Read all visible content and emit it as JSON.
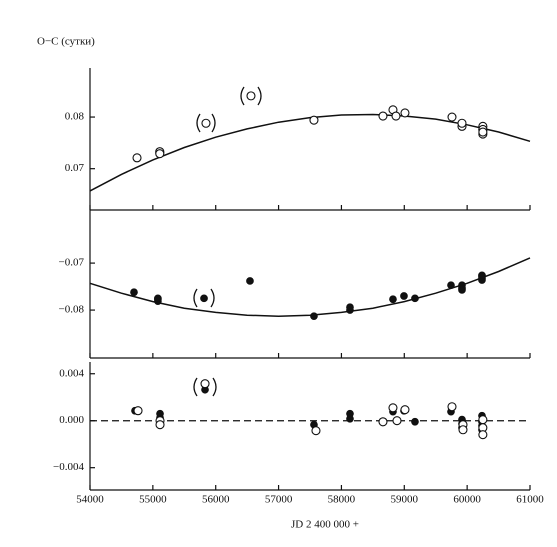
{
  "chart_data": [
    {
      "type": "scatter",
      "ylabel": "O−C (сутки)",
      "xlim": [
        54000,
        61000
      ],
      "xticks": [
        54000,
        55000,
        56000,
        57000,
        58000,
        59000,
        60000,
        61000
      ],
      "ylim": [
        0.062,
        0.0895
      ],
      "yticks": [
        0.07,
        0.08
      ],
      "series": [
        {
          "marker": "line",
          "color": "#111111",
          "x": [
            54000,
            54500,
            55000,
            55500,
            56000,
            56500,
            57000,
            57500,
            58000,
            58500,
            59000,
            59500,
            60000,
            60500,
            61000
          ],
          "values": [
            0.0657,
            0.0689,
            0.0717,
            0.0741,
            0.0761,
            0.0777,
            0.079,
            0.0799,
            0.0804,
            0.0805,
            0.0802,
            0.0796,
            0.0785,
            0.0771,
            0.0753
          ]
        },
        {
          "marker": "open",
          "color": "#111111",
          "x": [
            54748,
            55110,
            55110,
            55110,
            55845,
            56561,
            57563,
            58661,
            58820,
            58868,
            59011,
            59759,
            59918,
            59918,
            60250,
            60250,
            60250,
            60250,
            60250
          ],
          "values": [
            0.0721,
            0.0731,
            0.0733,
            0.0729,
            0.0788,
            0.0841,
            0.0794,
            0.0802,
            0.0814,
            0.0802,
            0.0808,
            0.08,
            0.0782,
            0.0788,
            0.0782,
            0.0775,
            0.0767,
            0.0776,
            0.0771
          ]
        }
      ]
    },
    {
      "type": "scatter",
      "xlim": [
        54000,
        61000
      ],
      "xticks": [
        54000,
        55000,
        56000,
        57000,
        58000,
        59000,
        60000,
        61000
      ],
      "ylim": [
        -0.0902,
        -0.0587
      ],
      "yticks": [
        {
          "value": -0.07,
          "label": "−0.07"
        },
        {
          "value": -0.08,
          "label": "−0.08"
        }
      ],
      "series": [
        {
          "marker": "line",
          "color": "#111111",
          "x": [
            54000,
            54500,
            55000,
            55500,
            56000,
            56500,
            57000,
            57500,
            58000,
            58500,
            59000,
            59500,
            60000,
            60500,
            61000
          ],
          "values": [
            -0.0743,
            -0.0764,
            -0.0782,
            -0.0796,
            -0.0805,
            -0.0811,
            -0.0813,
            -0.0811,
            -0.0805,
            -0.0796,
            -0.0782,
            -0.0764,
            -0.0743,
            -0.0718,
            -0.0689
          ]
        },
        {
          "marker": "filled",
          "color": "#111111",
          "x": [
            54700,
            55080,
            55080,
            55080,
            55814,
            56545,
            57563,
            58136,
            58136,
            58820,
            58995,
            59170,
            59743,
            59918,
            59918,
            59918,
            60236,
            60236,
            60236,
            60236
          ],
          "values": [
            -0.0762,
            -0.0775,
            -0.0781,
            -0.0777,
            -0.0775,
            -0.0738,
            -0.0813,
            -0.08,
            -0.0794,
            -0.0777,
            -0.077,
            -0.0775,
            -0.0747,
            -0.0747,
            -0.0753,
            -0.0757,
            -0.0732,
            -0.0726,
            -0.0736,
            -0.0728
          ]
        }
      ]
    },
    {
      "type": "scatter",
      "xlabel": "JD 2 400 000 +",
      "hline": 0,
      "xlim": [
        54000,
        61000
      ],
      "xticks": [
        54000,
        55000,
        56000,
        57000,
        58000,
        59000,
        60000,
        61000
      ],
      "ylim": [
        -0.0059,
        0.005
      ],
      "yticks": [
        {
          "value": 0.004,
          "label": "0.004"
        },
        {
          "value": 0,
          "label": "0.000"
        },
        {
          "value": -0.004,
          "label": "−0.004"
        }
      ],
      "series": [
        {
          "marker": "filled",
          "color": "#111111",
          "x": [
            54716,
            55114,
            55114,
            55830,
            57563,
            58136,
            58136,
            58820,
            58995,
            59170,
            59743,
            59918,
            59918,
            59918,
            60236,
            60236,
            60236,
            60236
          ],
          "values": [
            0.00085,
            0.00026,
            0.0006,
            0.00264,
            -0.00034,
            0.0006,
            0.00017,
            0.00077,
            0.00085,
            -9e-05,
            0.00077,
            9e-05,
            -0.0006,
            -0.00026,
            0.00043,
            -9e-05,
            -0.00043,
            -0.00077
          ]
        },
        {
          "marker": "open",
          "color": "#111111",
          "x": [
            54764,
            55114,
            55114,
            55830,
            57595,
            58661,
            58820,
            58884,
            59011,
            59759,
            59934,
            59934,
            60250,
            60250,
            60250
          ],
          "values": [
            0.00085,
            0,
            -0.00034,
            0.00315,
            -0.00085,
            -9e-05,
            0.0011,
            0,
            0.00094,
            0.00119,
            -0.00034,
            -0.00077,
            9e-05,
            -0.0006,
            -0.00119
          ]
        }
      ]
    }
  ]
}
